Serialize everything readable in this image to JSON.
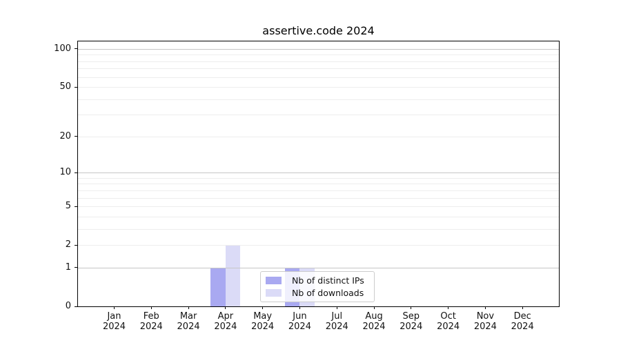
{
  "figure": {
    "background": "#ffffff",
    "text_color": "#111111",
    "axis_color": "#000000"
  },
  "chart_data": {
    "type": "bar",
    "title": "assertive.code 2024",
    "xlabel": "",
    "ylabel": "",
    "categories": [
      "Jan 2024",
      "Feb 2024",
      "Mar 2024",
      "Apr 2024",
      "May 2024",
      "Jun 2024",
      "Jul 2024",
      "Aug 2024",
      "Sep 2024",
      "Oct 2024",
      "Nov 2024",
      "Dec 2024"
    ],
    "series": [
      {
        "name": "Nb of distinct IPs",
        "color": "#a9a9f1",
        "values": [
          0,
          0,
          0,
          1,
          0,
          1,
          0,
          0,
          0,
          0,
          0,
          0
        ]
      },
      {
        "name": "Nb of downloads",
        "color": "#dbdbf7",
        "values": [
          0,
          0,
          0,
          2,
          0,
          1,
          0,
          0,
          0,
          0,
          0,
          0
        ]
      }
    ],
    "yscale": "log1p",
    "ylim": [
      0,
      114
    ],
    "yticks": [
      0,
      1,
      2,
      5,
      10,
      20,
      50,
      100
    ],
    "ytick_labels": [
      "0",
      "1",
      "2",
      "5",
      "10",
      "20",
      "50",
      "100"
    ],
    "grid": {
      "major_values": [
        1,
        10,
        100
      ],
      "minor_values": [
        2,
        3,
        4,
        5,
        6,
        7,
        8,
        9,
        20,
        30,
        40,
        50,
        60,
        70,
        80,
        90
      ],
      "major_color": "#c6c6c6",
      "minor_color": "#ededed"
    },
    "legend": {
      "position": "lower center",
      "entries": [
        "Nb of distinct IPs",
        "Nb of downloads"
      ]
    }
  }
}
